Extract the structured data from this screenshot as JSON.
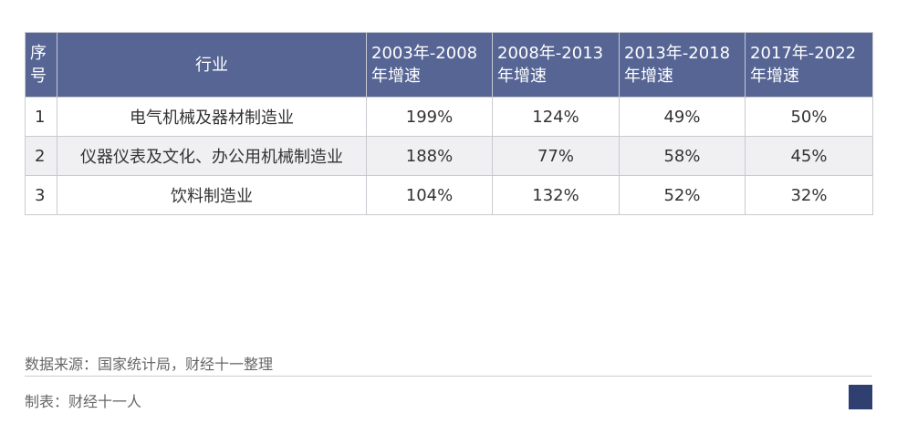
{
  "table": {
    "headers": [
      "序号",
      "行业",
      "2003年-2008年增速",
      "2008年-2013年增速",
      "2013年-2018年增速",
      "2017年-2022年增速"
    ],
    "rows": [
      [
        "1",
        "电气机械及器材制造业",
        "199%",
        "124%",
        "49%",
        "50%"
      ],
      [
        "2",
        "仪器仪表及文化、办公用机械制造业",
        "188%",
        "77%",
        "58%",
        "45%"
      ],
      [
        "3",
        "饮料制造业",
        "104%",
        "132%",
        "52%",
        "32%"
      ]
    ]
  },
  "footer": {
    "source": "数据来源：国家统计局，财经十一整理",
    "maker": "制表：财经十一人"
  }
}
